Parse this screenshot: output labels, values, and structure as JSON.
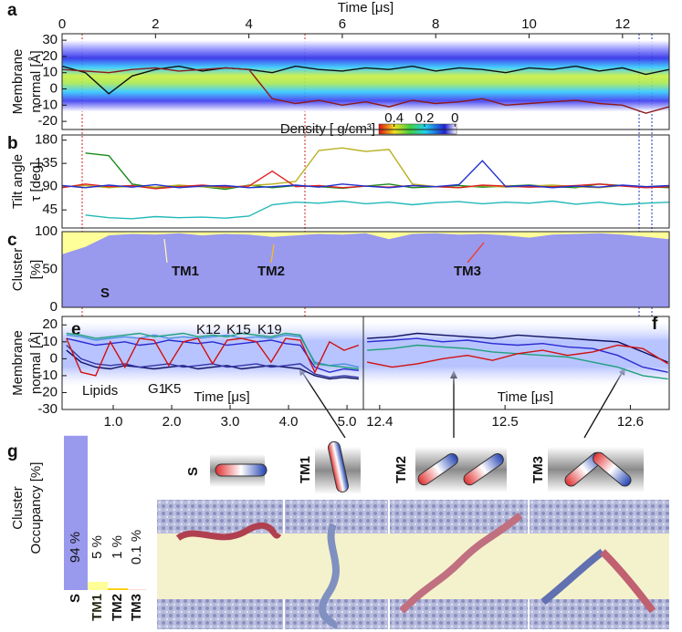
{
  "chart_data": [
    {
      "type": "line",
      "panel_label": "a",
      "xlabel": "Time [μs]",
      "ylabel": [
        "Membrane",
        "normal [Å]"
      ],
      "x": [
        0,
        0.5,
        1,
        1.5,
        2,
        2.5,
        3,
        3.5,
        4,
        4.5,
        5,
        5.5,
        6,
        6.5,
        7,
        7.5,
        8,
        8.5,
        9,
        9.5,
        10,
        10.5,
        11,
        11.5,
        12,
        12.5,
        13
      ],
      "xlim": [
        0,
        13
      ],
      "xticks": [
        0,
        2,
        4,
        6,
        8,
        10,
        12
      ],
      "ylim": [
        -25,
        34
      ],
      "yticks": [
        -20,
        -10,
        0,
        10,
        20,
        30
      ],
      "series": [
        {
          "color": "#111111",
          "values": [
            14,
            10,
            -3,
            8,
            12,
            14,
            11,
            13,
            12,
            10,
            14,
            12,
            11,
            13,
            12,
            14,
            11,
            13,
            12,
            10,
            13,
            12,
            14,
            11,
            13,
            9,
            12
          ]
        },
        {
          "color": "#8b1a1a",
          "values": [
            12,
            11,
            10,
            12,
            13,
            11,
            12,
            13,
            12,
            -6,
            -9,
            -7,
            -10,
            -8,
            -11,
            -7,
            -9,
            -8,
            -6,
            -10,
            -9,
            -8,
            -7,
            -9,
            -10,
            -15,
            -11
          ]
        }
      ],
      "colorbar": {
        "label": "Density [ g/cm³]",
        "lim": [
          0.5,
          -0.01
        ],
        "ticks": [
          0.4,
          0.2,
          0
        ]
      }
    },
    {
      "type": "line",
      "panel_label": "b",
      "ylabel": [
        "Tilt angle",
        "τ [deg]"
      ],
      "x": [
        0,
        0.5,
        1,
        1.5,
        2,
        2.5,
        3,
        3.5,
        4,
        4.5,
        5,
        5.5,
        6,
        6.5,
        7,
        7.5,
        8,
        8.5,
        9,
        9.5,
        10,
        10.5,
        11,
        11.5,
        12,
        12.5,
        13
      ],
      "xlim": [
        0,
        13
      ],
      "ylim": [
        10,
        190
      ],
      "yticks": [
        45,
        90,
        135,
        180
      ],
      "series": [
        {
          "color": "#1a8a1a",
          "values": [
            null,
            155,
            150,
            95,
            88,
            92,
            90,
            85,
            93,
            88,
            92,
            90,
            87,
            91,
            95,
            88,
            90,
            92,
            89,
            91,
            93,
            90,
            88,
            95,
            92,
            90,
            88
          ]
        },
        {
          "color": "#22b8b8",
          "values": [
            null,
            35,
            30,
            28,
            32,
            30,
            31,
            29,
            33,
            55,
            60,
            58,
            62,
            57,
            60,
            55,
            59,
            61,
            57,
            60,
            58,
            62,
            56,
            60,
            55,
            58,
            60
          ]
        },
        {
          "color": "#b8b020",
          "values": [
            90,
            92,
            88,
            91,
            89,
            93,
            90,
            88,
            92,
            95,
            100,
            160,
            165,
            158,
            162,
            95,
            90,
            88,
            92,
            89,
            91,
            93,
            90,
            88,
            92,
            90,
            91
          ]
        },
        {
          "color": "#e02020",
          "values": [
            88,
            95,
            90,
            92,
            86,
            90,
            93,
            89,
            91,
            120,
            90,
            92,
            88,
            91,
            89,
            92,
            90,
            88,
            93,
            91,
            89,
            90,
            92,
            95,
            91,
            88,
            90
          ]
        },
        {
          "color": "#2030d0",
          "values": [
            92,
            88,
            93,
            89,
            94,
            88,
            91,
            92,
            88,
            90,
            93,
            89,
            95,
            91,
            88,
            92,
            90,
            94,
            140,
            90,
            92,
            88,
            91,
            89,
            93,
            90,
            92
          ]
        }
      ]
    },
    {
      "type": "area",
      "panel_label": "c",
      "ylabel": [
        "Cluster",
        "[%]"
      ],
      "x": [
        0,
        0.5,
        1,
        1.5,
        2,
        2.5,
        3,
        3.5,
        4,
        4.5,
        5,
        5.5,
        6,
        6.5,
        7,
        7.5,
        8,
        8.5,
        9,
        9.5,
        10,
        10.5,
        11,
        11.5,
        12,
        12.5,
        13
      ],
      "xlim": [
        0,
        13
      ],
      "ylim": [
        0,
        100
      ],
      "yticks": [
        0,
        50,
        100
      ],
      "series": [
        {
          "color": "#9999ee",
          "values": [
            70,
            80,
            95,
            97,
            96,
            98,
            95,
            97,
            96,
            93,
            95,
            97,
            96,
            98,
            90,
            97,
            98,
            96,
            97,
            95,
            92,
            96,
            97,
            98,
            96,
            93,
            90
          ]
        }
      ],
      "annotations": [
        {
          "text": "S",
          "color": "#3a1fb0"
        },
        {
          "text": "TM1",
          "color": "#fffbb0"
        },
        {
          "text": "TM2",
          "color": "#ffc000"
        },
        {
          "text": "TM3",
          "color": "#ff3010"
        }
      ]
    },
    {
      "type": "line",
      "panel_label": "e",
      "xlabel": "Time [μs]",
      "ylabel": [
        "Membrane",
        "normal [Å]"
      ],
      "x": [
        0.2,
        0.45,
        0.7,
        0.95,
        1.2,
        1.45,
        1.7,
        1.95,
        2.2,
        2.45,
        2.7,
        2.95,
        3.2,
        3.45,
        3.7,
        3.95,
        4.2,
        4.45,
        4.7,
        4.95,
        5.2
      ],
      "xlim": [
        0.125,
        5.28
      ],
      "xticks": [
        {
          "value": 1,
          "label": "1.0"
        },
        {
          "value": 2,
          "label": "2.0"
        },
        {
          "value": 3,
          "label": "3.0"
        },
        {
          "value": 4,
          "label": "4.0"
        },
        {
          "value": 5,
          "label": "5.0"
        }
      ],
      "ylim": [
        -30,
        25
      ],
      "yticks": [
        -30,
        -20,
        -10,
        0,
        10,
        20
      ],
      "series": [
        {
          "name": "K12",
          "color": "#2a2ad0",
          "values": [
            12,
            10,
            8,
            9,
            10,
            8,
            9,
            11,
            10,
            9,
            10,
            8,
            9,
            10,
            11,
            9,
            8,
            -5,
            -8,
            -6,
            -7
          ]
        },
        {
          "name": "K15",
          "color": "#4a8fe0",
          "values": [
            14,
            13,
            11,
            12,
            13,
            12,
            14,
            12,
            13,
            12,
            13,
            14,
            12,
            13,
            12,
            14,
            13,
            -2,
            -4,
            -3,
            -5
          ]
        },
        {
          "name": "K19",
          "color": "#1fa07a",
          "values": [
            15,
            14,
            12,
            13,
            14,
            15,
            13,
            14,
            15,
            13,
            14,
            13,
            15,
            14,
            13,
            15,
            14,
            -3,
            -4,
            -5,
            -6
          ]
        },
        {
          "name": "G1",
          "color": "#101060",
          "values": [
            5,
            -2,
            -5,
            -6,
            -4,
            -5,
            -6,
            -5,
            -4,
            -6,
            -5,
            -4,
            -6,
            -5,
            -4,
            -5,
            -6,
            -10,
            -12,
            -11,
            -12
          ]
        },
        {
          "name": "K5",
          "color": "#3535a8",
          "values": [
            8,
            0,
            -3,
            -4,
            -3,
            -5,
            -4,
            -3,
            -5,
            -4,
            -3,
            -5,
            -4,
            -3,
            -5,
            -4,
            -3,
            -9,
            -11,
            -10,
            -11
          ]
        },
        {
          "name": "Lipids",
          "color": "#d01010",
          "values": [
            12,
            -8,
            -10,
            10,
            -5,
            12,
            11,
            -4,
            10,
            12,
            -3,
            11,
            12,
            10,
            -2,
            12,
            11,
            -8,
            10,
            5,
            8
          ]
        }
      ]
    },
    {
      "type": "line",
      "panel_label": "f",
      "xlabel": "Time [μs]",
      "x": [
        12.39,
        12.41,
        12.43,
        12.45,
        12.47,
        12.49,
        12.51,
        12.53,
        12.55,
        12.57,
        12.59,
        12.61,
        12.63
      ],
      "xlim": [
        12.387,
        12.631
      ],
      "xticks": [
        12.4,
        12.5,
        12.6
      ],
      "ylim": [
        -30,
        25
      ],
      "series": [
        {
          "color": "#101060",
          "values": [
            12,
            13,
            15,
            14,
            13,
            12,
            14,
            13,
            12,
            11,
            10,
            4,
            -2
          ]
        },
        {
          "color": "#2a2ad0",
          "values": [
            10,
            11,
            12,
            10,
            11,
            9,
            8,
            9,
            7,
            6,
            2,
            -5,
            -8
          ]
        },
        {
          "color": "#1fa07a",
          "values": [
            5,
            6,
            8,
            7,
            6,
            4,
            3,
            2,
            1,
            -2,
            -5,
            -10,
            -12
          ]
        },
        {
          "color": "#d01010",
          "values": [
            -2,
            -5,
            -3,
            0,
            2,
            -1,
            3,
            5,
            2,
            4,
            8,
            6,
            -3
          ]
        }
      ]
    },
    {
      "type": "bar",
      "panel_label": "g",
      "ylabel": [
        "Cluster",
        "Occupancy [%]"
      ],
      "categories": [
        "S",
        "TM1",
        "TM2",
        "TM3"
      ],
      "values": [
        94,
        5,
        1,
        0.1
      ],
      "value_labels": [
        "94 %",
        "5 %",
        "1 %",
        "0.1 %"
      ],
      "ylim": [
        0,
        100
      ],
      "colors": [
        "#9999ee",
        "#ffff99",
        "#ffcc00",
        "#ff3300"
      ],
      "label_colors": [
        "#3a1fb0",
        "#ffff80",
        "#ffcc00",
        "#ff3300"
      ]
    }
  ]
}
